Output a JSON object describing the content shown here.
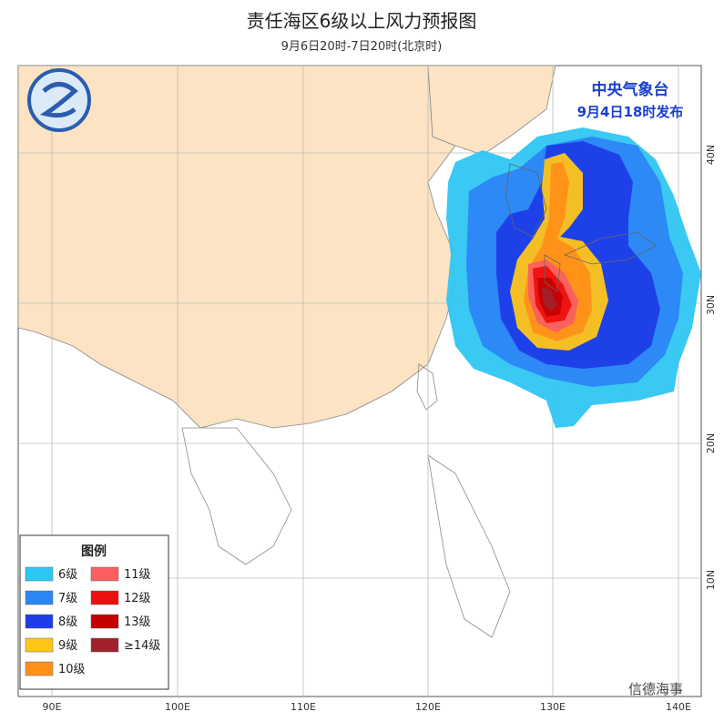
{
  "title": "责任海区6级以上风力预报图",
  "subtitle": "9月6日20时-7日20时(北京时)",
  "issuer": "中央气象台",
  "issued": "9月4日18时发布",
  "legend": {
    "title": "图例",
    "items": [
      {
        "label": "6级",
        "color": "#2ec6f2"
      },
      {
        "label": "7级",
        "color": "#2b86f5"
      },
      {
        "label": "8级",
        "color": "#1e3ce8"
      },
      {
        "label": "9级",
        "color": "#ffc61a"
      },
      {
        "label": "10级",
        "color": "#ff9019"
      },
      {
        "label": "11级",
        "color": "#fb5f5f"
      },
      {
        "label": "12级",
        "color": "#ee0f0f"
      },
      {
        "label": "13级",
        "color": "#c50000"
      },
      {
        "label": "≥14级",
        "color": "#a0212a"
      }
    ]
  },
  "longitude_labels": [
    "90E",
    "100E",
    "110E",
    "120E",
    "130E",
    "140E"
  ],
  "latitude_labels": [
    "40N",
    "30N",
    "20N",
    "10N"
  ],
  "watermark": "信德海事"
}
